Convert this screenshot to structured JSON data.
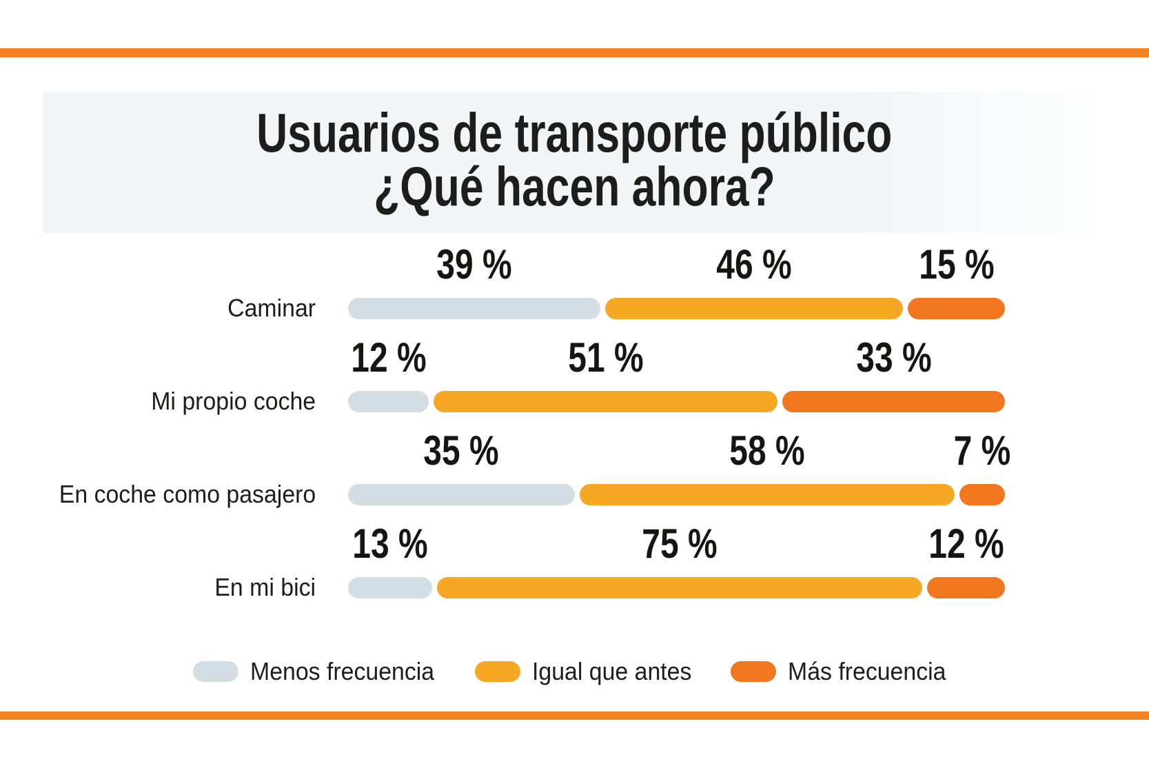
{
  "accent": {
    "bar_color": "#f58220"
  },
  "title": {
    "line1": "Usuarios de transporte público",
    "line2": "¿Qué hacen ahora?"
  },
  "chart_data": {
    "type": "bar",
    "orientation": "horizontal",
    "stacked": true,
    "percent_total": 100,
    "title": "Usuarios de transporte público ¿Qué hacen ahora?",
    "categories": [
      "Caminar",
      "Mi propio coche",
      "En coche como pasajero",
      "En mi bici"
    ],
    "series": [
      {
        "name": "Menos frecuencia",
        "color": "#d4dde3",
        "values": [
          39,
          12,
          35,
          13
        ]
      },
      {
        "name": "Igual que antes",
        "color": "#f6a825",
        "values": [
          46,
          51,
          58,
          75
        ]
      },
      {
        "name": "Más frecuencia",
        "color": "#f1771f",
        "values": [
          15,
          33,
          7,
          12
        ]
      }
    ],
    "rows": [
      {
        "label": "Caminar",
        "display": [
          "39 %",
          "46 %",
          "15 %"
        ]
      },
      {
        "label": "Mi propio coche",
        "display": [
          "12 %",
          "51 %",
          "33 %"
        ]
      },
      {
        "label": "En coche como pasajero",
        "display": [
          "35 %",
          "58 %",
          "7 %"
        ]
      },
      {
        "label": "En mi bici",
        "display": [
          "13 %",
          "75 %",
          "12 %"
        ]
      }
    ],
    "value_suffix": "%",
    "x_range": [
      0,
      100
    ],
    "grid": false,
    "legend_position": "bottom",
    "text_color": "#1d1d1b",
    "title_band_color": "#f1f5f7"
  }
}
